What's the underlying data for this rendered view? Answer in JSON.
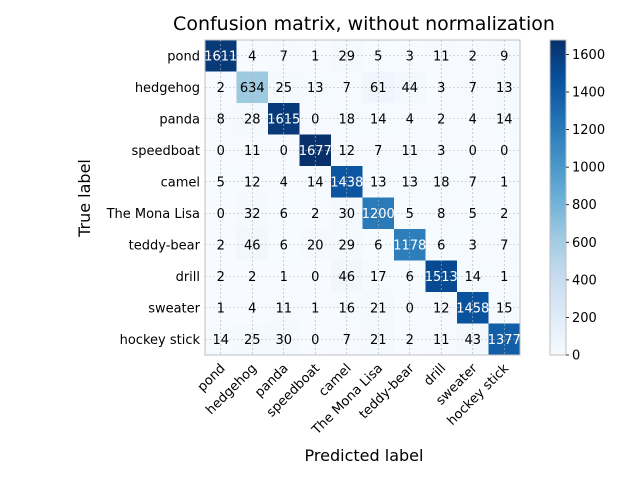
{
  "chart_data": {
    "type": "heatmap",
    "title": "Confusion matrix, without normalization",
    "xlabel": "Predicted label",
    "ylabel": "True label",
    "classes": [
      "pond",
      "hedgehog",
      "panda",
      "speedboat",
      "camel",
      "The Mona Lisa",
      "teddy-bear",
      "drill",
      "sweater",
      "hockey stick"
    ],
    "matrix": [
      [
        1611,
        4,
        7,
        1,
        29,
        5,
        3,
        11,
        2,
        9
      ],
      [
        2,
        634,
        25,
        13,
        7,
        61,
        44,
        3,
        7,
        13
      ],
      [
        8,
        28,
        1615,
        0,
        18,
        14,
        4,
        2,
        4,
        14
      ],
      [
        0,
        11,
        0,
        1677,
        12,
        7,
        11,
        3,
        0,
        0
      ],
      [
        5,
        12,
        4,
        14,
        1438,
        13,
        13,
        18,
        7,
        1
      ],
      [
        0,
        32,
        6,
        2,
        30,
        1200,
        5,
        8,
        5,
        2
      ],
      [
        2,
        46,
        6,
        20,
        29,
        6,
        1178,
        6,
        3,
        7
      ],
      [
        2,
        2,
        1,
        0,
        46,
        17,
        6,
        1513,
        14,
        1
      ],
      [
        1,
        4,
        11,
        1,
        16,
        21,
        0,
        12,
        1458,
        15
      ],
      [
        14,
        25,
        30,
        0,
        7,
        21,
        2,
        11,
        43,
        1377
      ]
    ],
    "colormap": "Blues",
    "colorbar": {
      "range": [
        0,
        1677
      ],
      "ticks": [
        0,
        200,
        400,
        600,
        800,
        1000,
        1200,
        1400,
        1600
      ]
    },
    "grid": true
  }
}
